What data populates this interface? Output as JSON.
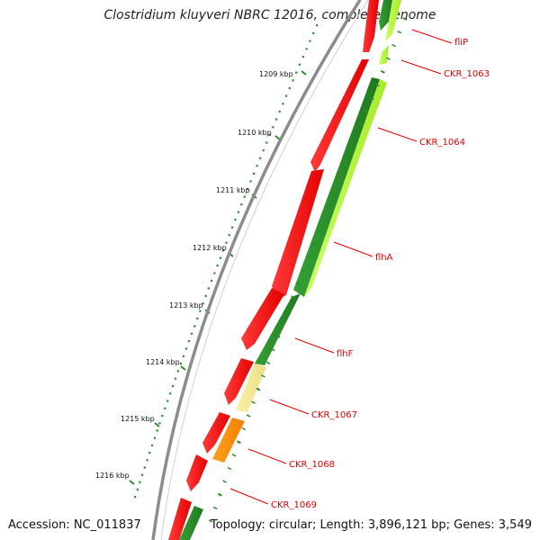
{
  "title": "Clostridium kluyveri NBRC 12016, complete genome",
  "accession": "Accession: NC_011837",
  "summary": "Topology: circular; Length: 3,896,121 bp; Genes: 3,549",
  "colors": {
    "backbone": "#8c8c8c",
    "tick_green": "#2e8b2e",
    "label_red": "#e00000",
    "gene_red": "#ff0000",
    "gene_dark_green": "#228b22",
    "gene_light_green": "#b5f53c",
    "gene_khaki": "#f0e68c",
    "gene_orange": "#ff8c00"
  },
  "kbp_ticks": [
    "1209 kbp",
    "1210 kbp",
    "1211 kbp",
    "1212 kbp",
    "1213 kbp",
    "1214 kbp",
    "1215 kbp",
    "1216 kbp"
  ],
  "gene_labels": [
    "fliP",
    "CKR_1063",
    "CKR_1064",
    "flhA",
    "flhF",
    "CKR_1067",
    "CKR_1068",
    "CKR_1069"
  ]
}
